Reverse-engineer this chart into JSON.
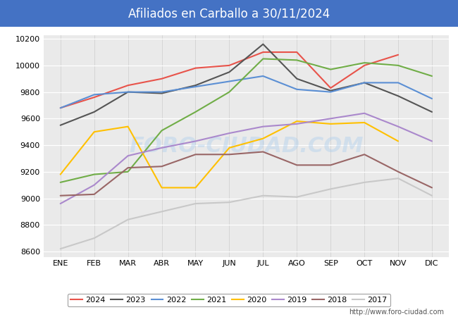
{
  "title": "Afiliados en Carballo a 30/11/2024",
  "title_color": "white",
  "title_bg_color": "#4472C4",
  "months": [
    "ENE",
    "FEB",
    "MAR",
    "ABR",
    "MAY",
    "JUN",
    "JUL",
    "AGO",
    "SEP",
    "OCT",
    "NOV",
    "DIC"
  ],
  "ylim": [
    8560,
    10230
  ],
  "yticks": [
    8600,
    8800,
    9000,
    9200,
    9400,
    9600,
    9800,
    10000,
    10200
  ],
  "watermark": "FORO-CIUDAD.COM",
  "url": "http://www.foro-ciudad.com",
  "series": {
    "2024": {
      "color": "#E8534A",
      "linewidth": 1.5,
      "data": [
        9680,
        9760,
        9850,
        9900,
        9980,
        10000,
        10100,
        10100,
        9830,
        10000,
        10080,
        null
      ]
    },
    "2023": {
      "color": "#555555",
      "linewidth": 1.5,
      "data": [
        9550,
        9650,
        9800,
        9790,
        9850,
        9950,
        10160,
        9900,
        9810,
        9870,
        9770,
        9650
      ]
    },
    "2022": {
      "color": "#5B8FD4",
      "linewidth": 1.5,
      "data": [
        9680,
        9780,
        9800,
        9800,
        9840,
        9880,
        9920,
        9820,
        9800,
        9870,
        9870,
        9750
      ]
    },
    "2021": {
      "color": "#70AD47",
      "linewidth": 1.5,
      "data": [
        9120,
        9180,
        9200,
        9510,
        9650,
        9800,
        10050,
        10040,
        9970,
        10020,
        10000,
        9920
      ]
    },
    "2020": {
      "color": "#FFC000",
      "linewidth": 1.5,
      "data": [
        9180,
        9500,
        9540,
        9080,
        9080,
        9380,
        9450,
        9580,
        9560,
        9570,
        9430,
        null
      ]
    },
    "2019": {
      "color": "#AA88CC",
      "linewidth": 1.5,
      "data": [
        8960,
        9100,
        9320,
        9380,
        9430,
        9490,
        9540,
        9560,
        9600,
        9640,
        9540,
        9430
      ]
    },
    "2018": {
      "color": "#996666",
      "linewidth": 1.5,
      "data": [
        9020,
        9030,
        9230,
        9240,
        9330,
        9330,
        9350,
        9250,
        9250,
        9330,
        9200,
        9080
      ]
    },
    "2017": {
      "color": "#C8C8C8",
      "linewidth": 1.5,
      "data": [
        8620,
        8700,
        8840,
        8900,
        8960,
        8970,
        9020,
        9010,
        9070,
        9120,
        9150,
        9020
      ]
    }
  }
}
